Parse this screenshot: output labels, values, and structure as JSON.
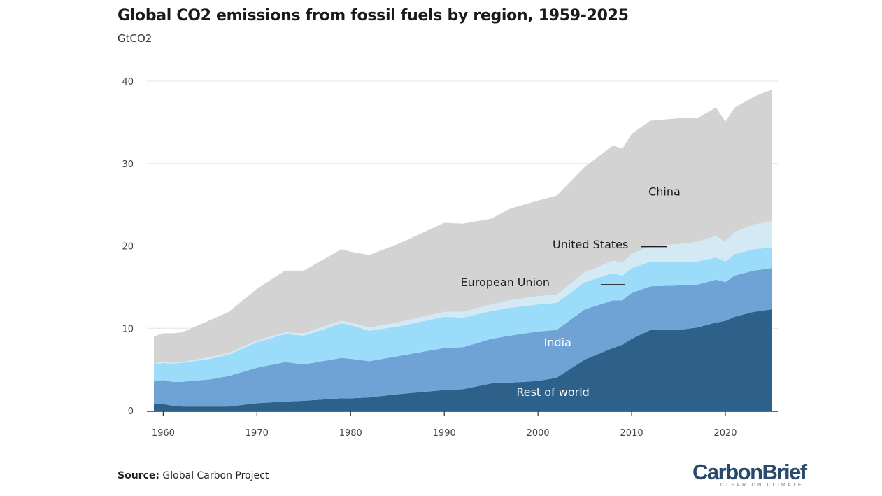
{
  "header": {
    "title": "Global CO2 emissions from fossil fuels by region, 1959-2025",
    "subtitle": "GtCO2"
  },
  "footer": {
    "source_label": "Source:",
    "source_text": "Global Carbon Project",
    "logo_main": "CarbonBrief",
    "logo_tagline": "CLEAR ON CLIMATE"
  },
  "colors": {
    "china": "#2e6189",
    "united_states": "#6fa3d6",
    "european_union": "#9bdcfa",
    "india": "#d3eaf5",
    "rest_of_world": "#d3d3d3",
    "grid": "#e3e3e3",
    "axis": "#333333",
    "label_dark": "#1a1a1a",
    "label_light": "#ffffff"
  },
  "chart_data": {
    "type": "area",
    "stacked": true,
    "title": "Global CO2 emissions from fossil fuels by region, 1959-2025",
    "ylabel": "GtCO2",
    "xlim": [
      1959,
      2025
    ],
    "ylim": [
      0,
      40
    ],
    "x_ticks": [
      "1960",
      "1970",
      "1980",
      "1990",
      "2000",
      "2010",
      "2020"
    ],
    "y_ticks": [
      "0",
      "10",
      "20",
      "30",
      "40"
    ],
    "grid": true,
    "x": [
      1959,
      1960,
      1961,
      1962,
      1965,
      1967,
      1970,
      1973,
      1975,
      1979,
      1980,
      1982,
      1985,
      1990,
      1992,
      1995,
      1997,
      2000,
      2002,
      2005,
      2008,
      2009,
      2010,
      2012,
      2015,
      2017,
      2019,
      2020,
      2021,
      2023,
      2025
    ],
    "series": [
      {
        "name": "China",
        "values": [
          0.8,
          0.8,
          0.6,
          0.5,
          0.5,
          0.5,
          0.9,
          1.1,
          1.2,
          1.5,
          1.5,
          1.6,
          2.0,
          2.5,
          2.6,
          3.3,
          3.4,
          3.6,
          4.0,
          6.2,
          7.6,
          8.0,
          8.7,
          9.8,
          9.8,
          10.1,
          10.7,
          10.9,
          11.4,
          12.0,
          12.3
        ]
      },
      {
        "name": "United States",
        "values": [
          2.8,
          2.9,
          2.9,
          3.0,
          3.3,
          3.7,
          4.3,
          4.8,
          4.4,
          4.9,
          4.8,
          4.4,
          4.6,
          5.1,
          5.1,
          5.4,
          5.7,
          6.0,
          5.8,
          6.1,
          5.8,
          5.4,
          5.6,
          5.3,
          5.4,
          5.2,
          5.2,
          4.7,
          5.0,
          5.0,
          5.0
        ]
      },
      {
        "name": "European Union",
        "values": [
          2.0,
          2.1,
          2.2,
          2.3,
          2.5,
          2.6,
          3.1,
          3.4,
          3.5,
          4.2,
          4.1,
          3.7,
          3.6,
          3.8,
          3.6,
          3.4,
          3.4,
          3.3,
          3.3,
          3.3,
          3.3,
          3.0,
          3.0,
          3.0,
          2.8,
          2.8,
          2.7,
          2.5,
          2.6,
          2.6,
          2.5
        ]
      },
      {
        "name": "India",
        "values": [
          0.1,
          0.1,
          0.1,
          0.1,
          0.2,
          0.2,
          0.2,
          0.2,
          0.3,
          0.3,
          0.3,
          0.4,
          0.5,
          0.6,
          0.7,
          0.8,
          0.9,
          1.0,
          1.0,
          1.2,
          1.5,
          1.6,
          1.7,
          1.9,
          2.2,
          2.4,
          2.6,
          2.4,
          2.7,
          3.0,
          3.2
        ]
      },
      {
        "name": "Rest of world",
        "values": [
          3.3,
          3.5,
          3.6,
          3.6,
          4.5,
          5.0,
          6.3,
          7.5,
          7.6,
          8.7,
          8.6,
          8.8,
          9.5,
          10.8,
          10.7,
          10.4,
          11.1,
          11.6,
          12.0,
          12.8,
          14.0,
          13.8,
          14.6,
          15.2,
          15.3,
          15.0,
          15.6,
          14.6,
          15.1,
          15.5,
          16.0
        ]
      }
    ],
    "annotations": [
      {
        "text": "Rest of world",
        "series": "Rest of world"
      },
      {
        "text": "India",
        "series": "India"
      },
      {
        "text": "European Union",
        "series": "European Union"
      },
      {
        "text": "United States",
        "series": "United States"
      },
      {
        "text": "China",
        "series": "China"
      }
    ]
  }
}
